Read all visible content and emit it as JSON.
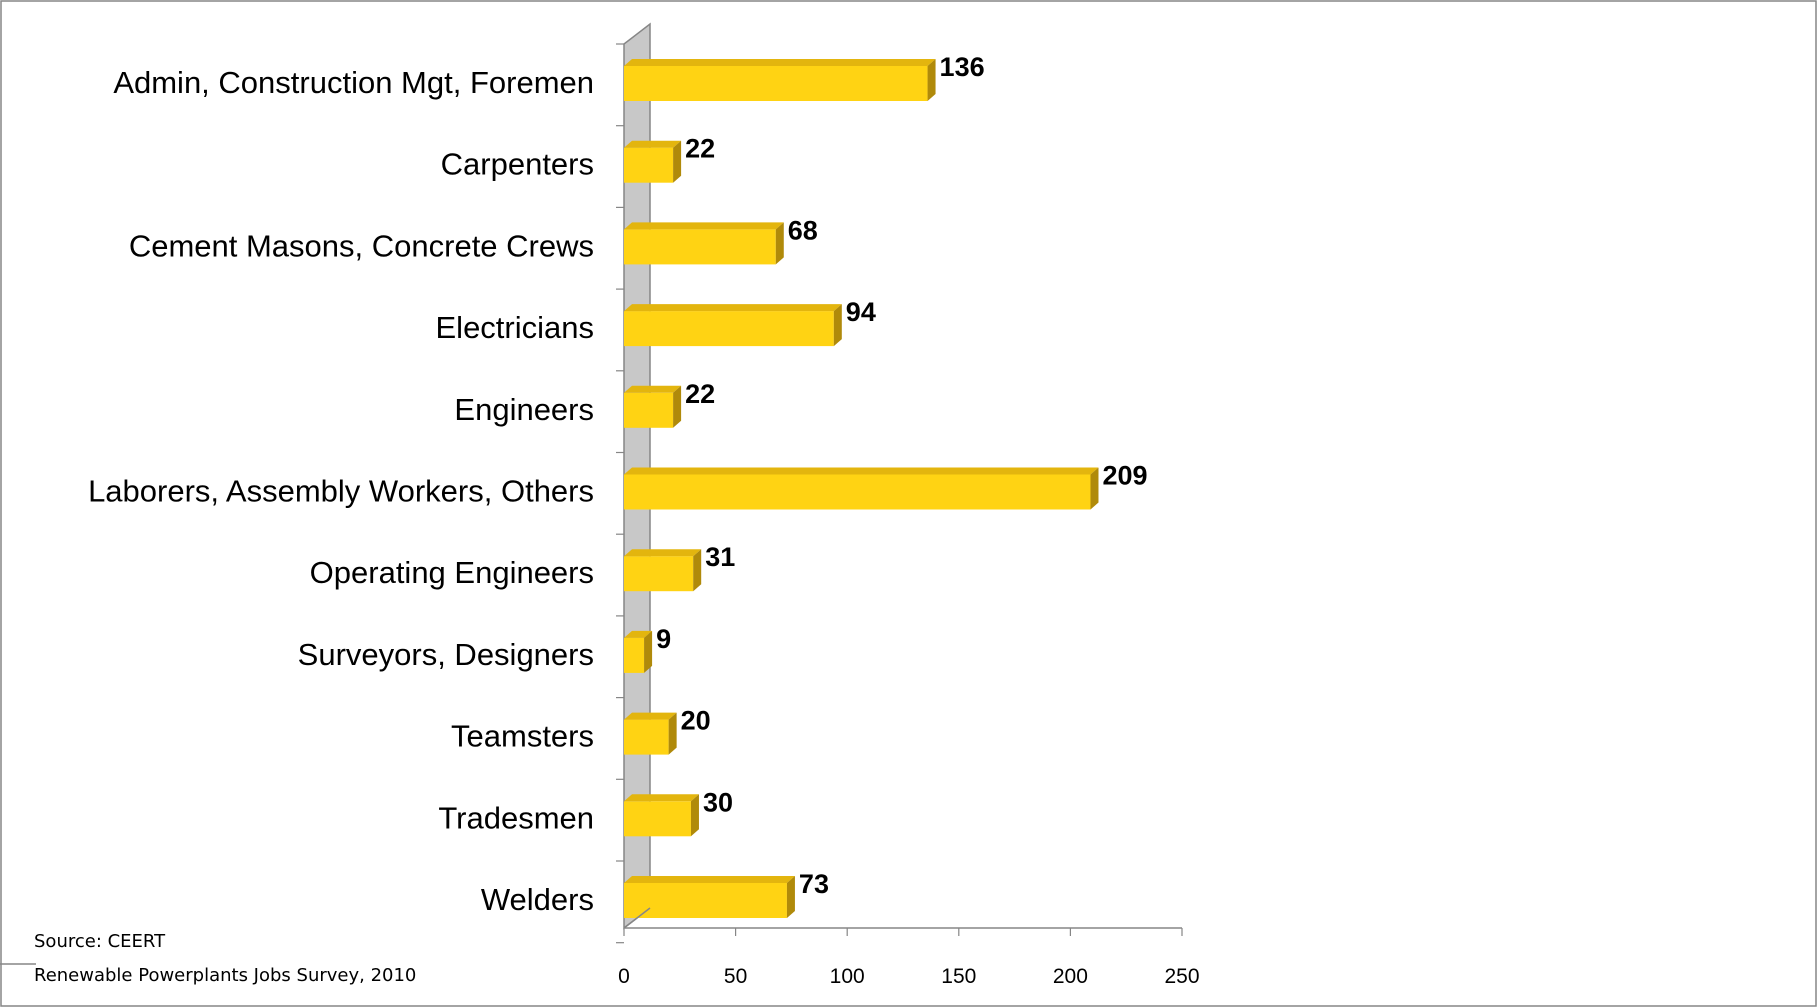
{
  "chart_data": {
    "type": "bar",
    "orientation": "horizontal",
    "style": "3d",
    "categories": [
      "Admin, Construction Mgt, Foremen",
      "Carpenters",
      "Cement Masons, Concrete Crews",
      "Electricians",
      "Engineers",
      "Laborers, Assembly Workers, Others",
      "Operating Engineers",
      "Surveyors, Designers",
      "Teamsters",
      "Tradesmen",
      "Welders"
    ],
    "values": [
      136,
      22,
      68,
      94,
      22,
      209,
      31,
      9,
      20,
      30,
      73
    ],
    "value_labels": [
      "136",
      "22",
      "68",
      "94",
      "22",
      "209",
      "31",
      "9",
      "20",
      "30",
      "73"
    ],
    "xlim": [
      0,
      250
    ],
    "x_ticks": [
      "0",
      "50",
      "100",
      "150",
      "200",
      "250"
    ],
    "grid": false,
    "legend": "none",
    "title": "",
    "xlabel": "",
    "ylabel": "",
    "colors": {
      "bar_face": "#FFD313",
      "bar_top": "#E3B50E",
      "bar_side": "#B08A0A",
      "wall": "#C8C8C8",
      "axis": "#868686"
    }
  },
  "source": {
    "line1": "Source: CEERT",
    "line2": "Renewable Powerplants Jobs Survey, 2010"
  }
}
